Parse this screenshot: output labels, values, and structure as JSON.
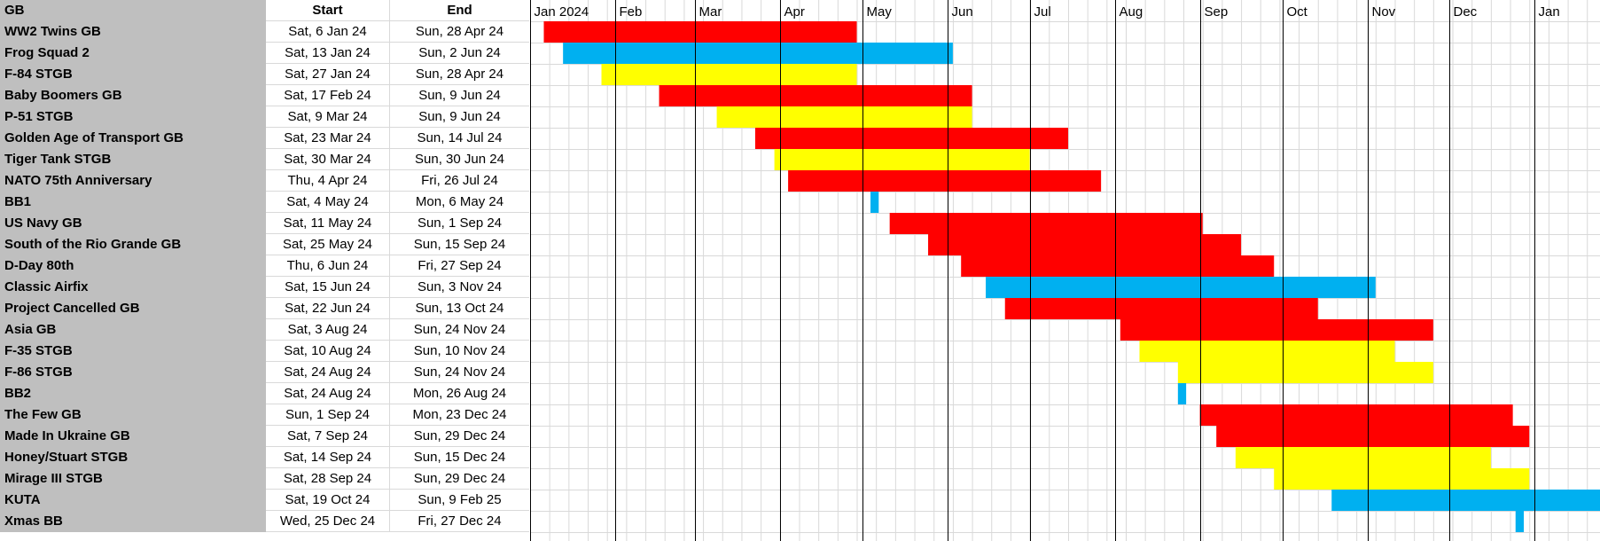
{
  "headers": {
    "name": "GB",
    "start": "Start",
    "end": "End"
  },
  "months": [
    "Jan 2024",
    "Feb",
    "Mar",
    "Apr",
    "May",
    "Jun",
    "Jul",
    "Aug",
    "Sep",
    "Oct",
    "Nov",
    "Dec",
    "Jan"
  ],
  "colors": {
    "red": "#ff0000",
    "yellow": "#ffff00",
    "blue": "#00b0f0",
    "grid": "#d9d9d9",
    "monthLine": "#000000",
    "nameBg": "#bfbfbf"
  },
  "rows": [
    {
      "name": "WW2 Twins GB",
      "start": "Sat, 6 Jan 24",
      "end": "Sun, 28 Apr 24",
      "color": "red",
      "startDate": "2024-01-06",
      "endDate": "2024-04-28"
    },
    {
      "name": "Frog Squad 2",
      "start": "Sat, 13 Jan 24",
      "end": "Sun, 2 Jun 24",
      "color": "blue",
      "startDate": "2024-01-13",
      "endDate": "2024-06-02"
    },
    {
      "name": "F-84 STGB",
      "start": "Sat, 27 Jan 24",
      "end": "Sun, 28 Apr 24",
      "color": "yellow",
      "startDate": "2024-01-27",
      "endDate": "2024-04-28"
    },
    {
      "name": "Baby Boomers GB",
      "start": "Sat, 17 Feb 24",
      "end": "Sun, 9 Jun 24",
      "color": "red",
      "startDate": "2024-02-17",
      "endDate": "2024-06-09"
    },
    {
      "name": "P-51 STGB",
      "start": "Sat, 9 Mar 24",
      "end": "Sun, 9 Jun 24",
      "color": "yellow",
      "startDate": "2024-03-09",
      "endDate": "2024-06-09"
    },
    {
      "name": "Golden Age of Transport GB",
      "start": "Sat, 23 Mar 24",
      "end": "Sun, 14 Jul 24",
      "color": "red",
      "startDate": "2024-03-23",
      "endDate": "2024-07-14"
    },
    {
      "name": "Tiger Tank STGB",
      "start": "Sat, 30 Mar 24",
      "end": "Sun, 30 Jun 24",
      "color": "yellow",
      "startDate": "2024-03-30",
      "endDate": "2024-06-30"
    },
    {
      "name": "NATO 75th Anniversary",
      "start": "Thu, 4 Apr 24",
      "end": "Fri, 26 Jul 24",
      "color": "red",
      "startDate": "2024-04-04",
      "endDate": "2024-07-26"
    },
    {
      "name": "BB1",
      "start": "Sat, 4 May 24",
      "end": "Mon, 6 May 24",
      "color": "blue",
      "startDate": "2024-05-04",
      "endDate": "2024-05-06"
    },
    {
      "name": "US Navy GB",
      "start": "Sat, 11 May 24",
      "end": "Sun, 1 Sep 24",
      "color": "red",
      "startDate": "2024-05-11",
      "endDate": "2024-09-01"
    },
    {
      "name": "South of the Rio Grande GB",
      "start": "Sat, 25 May 24",
      "end": "Sun, 15 Sep 24",
      "color": "red",
      "startDate": "2024-05-25",
      "endDate": "2024-09-15"
    },
    {
      "name": "D-Day 80th",
      "start": "Thu, 6 Jun 24",
      "end": "Fri, 27 Sep 24",
      "color": "red",
      "startDate": "2024-06-06",
      "endDate": "2024-09-27"
    },
    {
      "name": "Classic Airfix",
      "start": "Sat, 15 Jun 24",
      "end": "Sun, 3 Nov 24",
      "color": "blue",
      "startDate": "2024-06-15",
      "endDate": "2024-11-03"
    },
    {
      "name": "Project Cancelled GB",
      "start": "Sat, 22 Jun 24",
      "end": "Sun, 13 Oct 24",
      "color": "red",
      "startDate": "2024-06-22",
      "endDate": "2024-10-13"
    },
    {
      "name": "Asia GB",
      "start": "Sat, 3 Aug 24",
      "end": "Sun, 24 Nov 24",
      "color": "red",
      "startDate": "2024-08-03",
      "endDate": "2024-11-24"
    },
    {
      "name": "F-35 STGB",
      "start": "Sat, 10 Aug 24",
      "end": "Sun, 10 Nov 24",
      "color": "yellow",
      "startDate": "2024-08-10",
      "endDate": "2024-11-10"
    },
    {
      "name": "F-86 STGB",
      "start": "Sat, 24 Aug 24",
      "end": "Sun, 24 Nov 24",
      "color": "yellow",
      "startDate": "2024-08-24",
      "endDate": "2024-11-24"
    },
    {
      "name": "BB2",
      "start": "Sat, 24 Aug 24",
      "end": "Mon, 26 Aug 24",
      "color": "blue",
      "startDate": "2024-08-24",
      "endDate": "2024-08-26"
    },
    {
      "name": "The Few GB",
      "start": "Sun, 1 Sep 24",
      "end": "Mon, 23 Dec 24",
      "color": "red",
      "startDate": "2024-09-01",
      "endDate": "2024-12-23"
    },
    {
      "name": "Made In Ukraine GB",
      "start": "Sat, 7 Sep 24",
      "end": "Sun, 29 Dec 24",
      "color": "red",
      "startDate": "2024-09-07",
      "endDate": "2024-12-29"
    },
    {
      "name": "Honey/Stuart STGB",
      "start": "Sat, 14 Sep 24",
      "end": "Sun, 15 Dec 24",
      "color": "yellow",
      "startDate": "2024-09-14",
      "endDate": "2024-12-15"
    },
    {
      "name": "Mirage III STGB",
      "start": "Sat, 28 Sep 24",
      "end": "Sun, 29 Dec 24",
      "color": "yellow",
      "startDate": "2024-09-28",
      "endDate": "2024-12-29"
    },
    {
      "name": "KUTA",
      "start": "Sat, 19 Oct 24",
      "end": "Sun, 9 Feb 25",
      "color": "blue",
      "startDate": "2024-10-19",
      "endDate": "2025-02-09"
    },
    {
      "name": "Xmas BB",
      "start": "Wed, 25 Dec 24",
      "end": "Fri, 27 Dec 24",
      "color": "blue",
      "startDate": "2024-12-25",
      "endDate": "2024-12-27"
    }
  ]
}
